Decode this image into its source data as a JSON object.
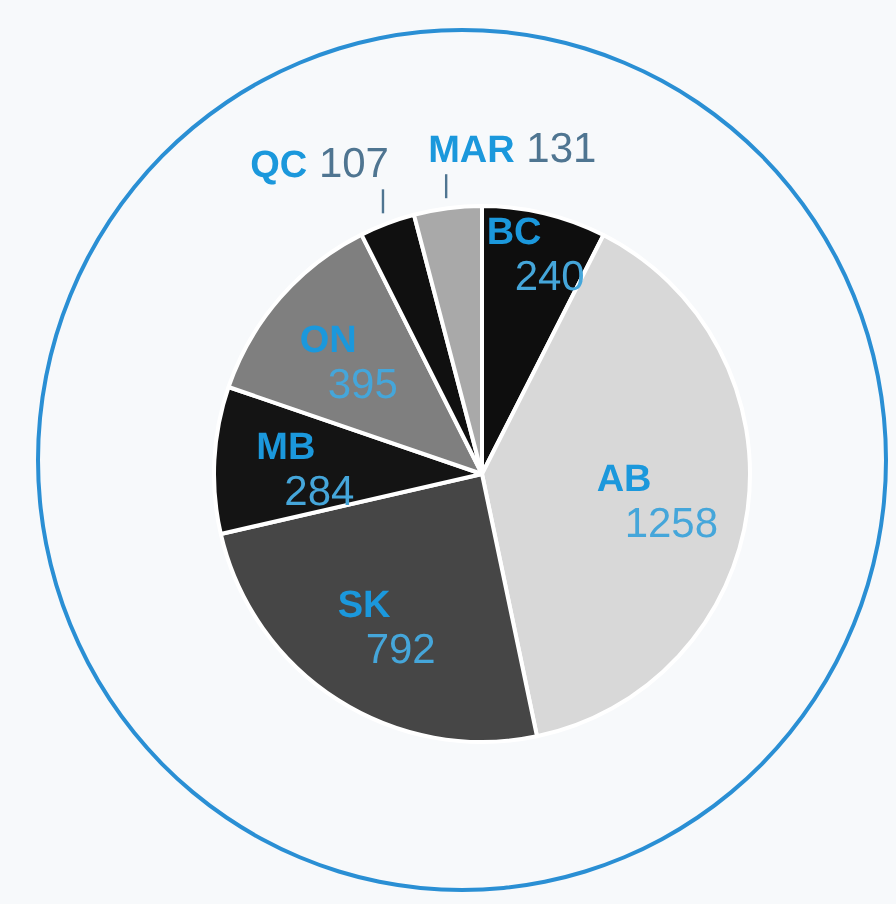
{
  "chart_data": {
    "type": "pie",
    "categories": [
      "BC",
      "AB",
      "SK",
      "MB",
      "ON",
      "QC",
      "MAR"
    ],
    "values": [
      240,
      1258,
      792,
      284,
      395,
      107,
      131
    ],
    "colors": [
      "#0e0e0e",
      "#d8d8d8",
      "#464646",
      "#141414",
      "#7f7f7f",
      "#101010",
      "#a9a9a9"
    ],
    "data_labels": true,
    "legend": false
  }
}
